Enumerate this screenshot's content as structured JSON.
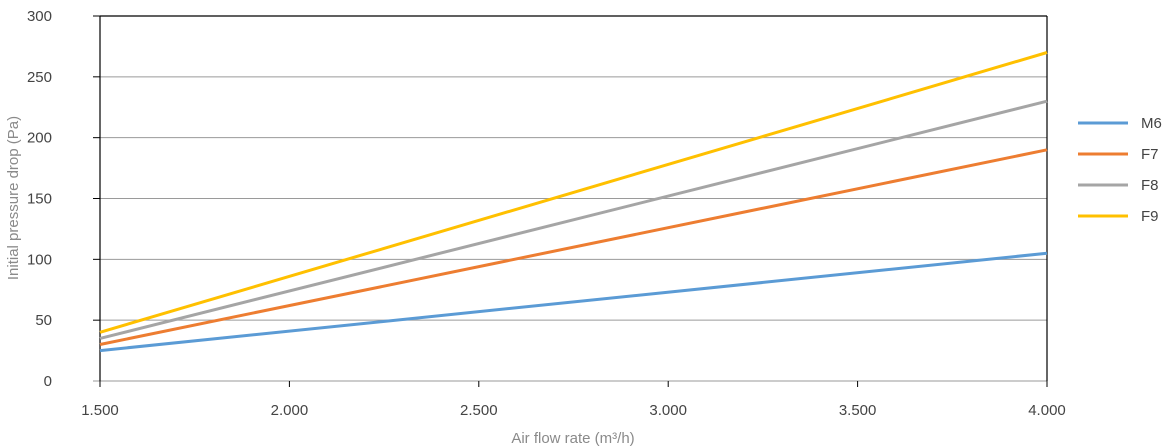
{
  "chart_data": {
    "type": "line",
    "xlabel": "Air flow rate (m³/h)",
    "ylabel": "Initial pressure drop (Pa)",
    "x": [
      1500,
      4000
    ],
    "x_tick_values": [
      1500,
      2000,
      2500,
      3000,
      3500,
      4000
    ],
    "x_tick_labels": [
      "1.500",
      "2.000",
      "2.500",
      "3.000",
      "3.500",
      "4.000"
    ],
    "y_tick_values": [
      0,
      50,
      100,
      150,
      200,
      250,
      300
    ],
    "y_tick_labels": [
      "0",
      "50",
      "100",
      "150",
      "200",
      "250",
      "300"
    ],
    "xlim": [
      1500,
      4000
    ],
    "ylim": [
      0,
      300
    ],
    "grid": "horizontal",
    "legend_position": "right",
    "series": [
      {
        "name": "M6",
        "color": "#5b9bd5",
        "values": [
          25,
          105
        ]
      },
      {
        "name": "F7",
        "color": "#ed7d31",
        "values": [
          30,
          190
        ]
      },
      {
        "name": "F8",
        "color": "#a5a5a5",
        "values": [
          35,
          230
        ]
      },
      {
        "name": "F9",
        "color": "#ffc000",
        "values": [
          40,
          270
        ]
      }
    ]
  }
}
